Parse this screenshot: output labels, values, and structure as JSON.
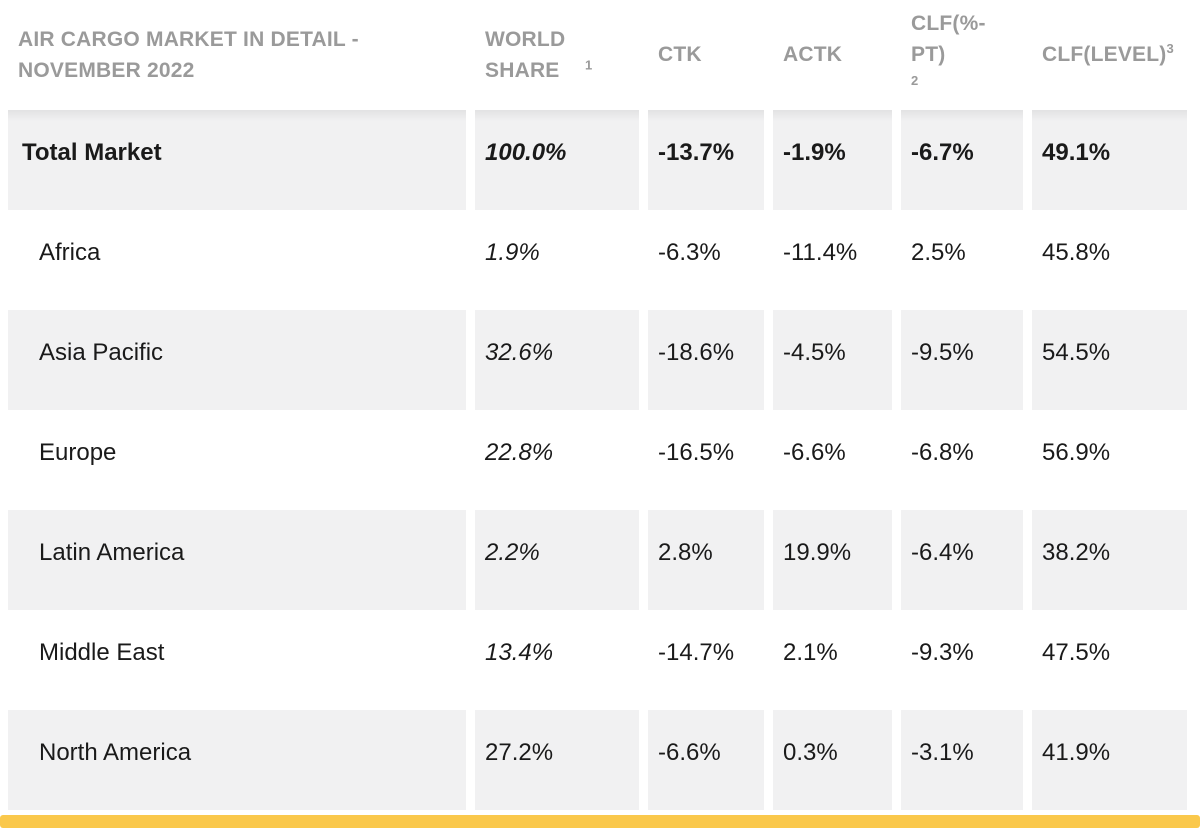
{
  "page": {
    "accent_bar_color": "#FAC84B",
    "header_text_color": "#9A9A9A",
    "row_shade_color": "#F1F1F2",
    "body_text_color": "#1A1A1A"
  },
  "table": {
    "title": "AIR CARGO MARKET IN DETAIL - NOVEMBER 2022",
    "columns": [
      {
        "label": "WORLD SHARE",
        "sup": "1"
      },
      {
        "label": "CTK",
        "sup": ""
      },
      {
        "label": "ACTK",
        "sup": ""
      },
      {
        "label": "CLF(%-PT)",
        "sup": "2"
      },
      {
        "label": "CLF(LEVEL)",
        "sup": "3"
      }
    ],
    "rows": [
      {
        "region": "Total Market",
        "world_share": "100.0%",
        "ctk": "-13.7%",
        "actk": "-1.9%",
        "clf_pct_pt": "-6.7%",
        "clf_level": "49.1%"
      },
      {
        "region": "Africa",
        "world_share": "1.9%",
        "ctk": "-6.3%",
        "actk": "-11.4%",
        "clf_pct_pt": "2.5%",
        "clf_level": "45.8%"
      },
      {
        "region": "Asia Pacific",
        "world_share": "32.6%",
        "ctk": "-18.6%",
        "actk": "-4.5%",
        "clf_pct_pt": "-9.5%",
        "clf_level": "54.5%"
      },
      {
        "region": "Europe",
        "world_share": "22.8%",
        "ctk": "-16.5%",
        "actk": "-6.6%",
        "clf_pct_pt": "-6.8%",
        "clf_level": "56.9%"
      },
      {
        "region": "Latin America",
        "world_share": "2.2%",
        "ctk": "2.8%",
        "actk": "19.9%",
        "clf_pct_pt": "-6.4%",
        "clf_level": "38.2%"
      },
      {
        "region": "Middle East",
        "world_share": "13.4%",
        "ctk": "-14.7%",
        "actk": "2.1%",
        "clf_pct_pt": "-9.3%",
        "clf_level": "47.5%"
      },
      {
        "region": "North America",
        "world_share": "27.2%",
        "ctk": "-6.6%",
        "actk": "0.3%",
        "clf_pct_pt": "-3.1%",
        "clf_level": "41.9%"
      }
    ]
  },
  "chart_data": {
    "type": "table",
    "title": "AIR CARGO MARKET IN DETAIL - NOVEMBER 2022",
    "columns": [
      "",
      "WORLD SHARE¹",
      "CTK",
      "ACTK",
      "CLF(%-PT)²",
      "CLF(LEVEL)³"
    ],
    "rows": [
      [
        "Total Market",
        "100.0%",
        "-13.7%",
        "-1.9%",
        "-6.7%",
        "49.1%"
      ],
      [
        "Africa",
        "1.9%",
        "-6.3%",
        "-11.4%",
        "2.5%",
        "45.8%"
      ],
      [
        "Asia Pacific",
        "32.6%",
        "-18.6%",
        "-4.5%",
        "-9.5%",
        "54.5%"
      ],
      [
        "Europe",
        "22.8%",
        "-16.5%",
        "-6.6%",
        "-6.8%",
        "56.9%"
      ],
      [
        "Latin America",
        "2.2%",
        "2.8%",
        "19.9%",
        "-6.4%",
        "38.2%"
      ],
      [
        "Middle East",
        "13.4%",
        "-14.7%",
        "2.1%",
        "-9.3%",
        "47.5%"
      ],
      [
        "North America",
        "27.2%",
        "-6.6%",
        "0.3%",
        "-3.1%",
        "41.9%"
      ]
    ],
    "notes": "Values in WORLD SHARE column are italic except North America; Total Market row is bold and shaded; rows alternate shaded/white; yellow accent bar at bottom."
  }
}
